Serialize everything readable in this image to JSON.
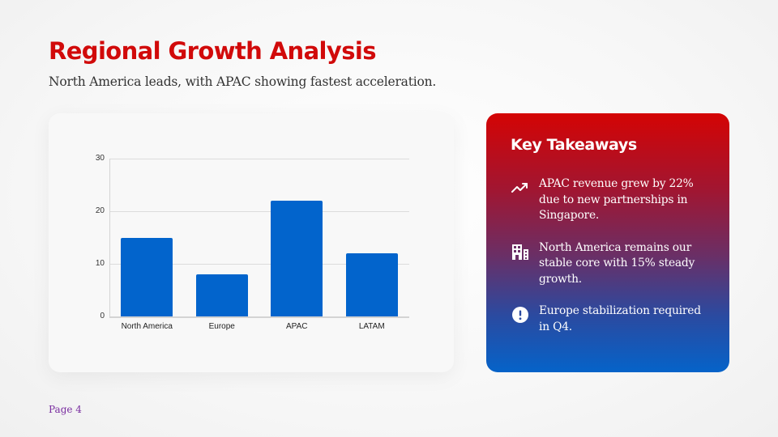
{
  "header": {
    "title": "Regional Growth Analysis",
    "subtitle": "North America leads, with APAC showing fastest acceleration."
  },
  "chart_data": {
    "type": "bar",
    "title": "",
    "xlabel": "",
    "ylabel": "",
    "categories": [
      "North America",
      "Europe",
      "APAC",
      "LATAM"
    ],
    "values": [
      15,
      8,
      22,
      12
    ],
    "ylim": [
      0,
      30
    ],
    "yticks": [
      0,
      10,
      20,
      30
    ],
    "grid": true,
    "legend": "none",
    "bar_color": "#0264cc"
  },
  "takeaways": {
    "title": "Key Takeaways",
    "items": [
      {
        "icon": "trending-up-icon",
        "text": "APAC revenue grew by 22% due to new partnerships in Singapore."
      },
      {
        "icon": "building-icon",
        "text": "North America remains our stable core with 15% steady growth."
      },
      {
        "icon": "alert-circle-icon",
        "text": "Europe stabilization required in Q4."
      }
    ]
  },
  "footer": {
    "page_label": "Page 4"
  },
  "colors": {
    "title": "#d10a0a",
    "gradient_top": "#d40404",
    "gradient_bottom": "#0563c9",
    "page_label": "#7a2ea0"
  }
}
